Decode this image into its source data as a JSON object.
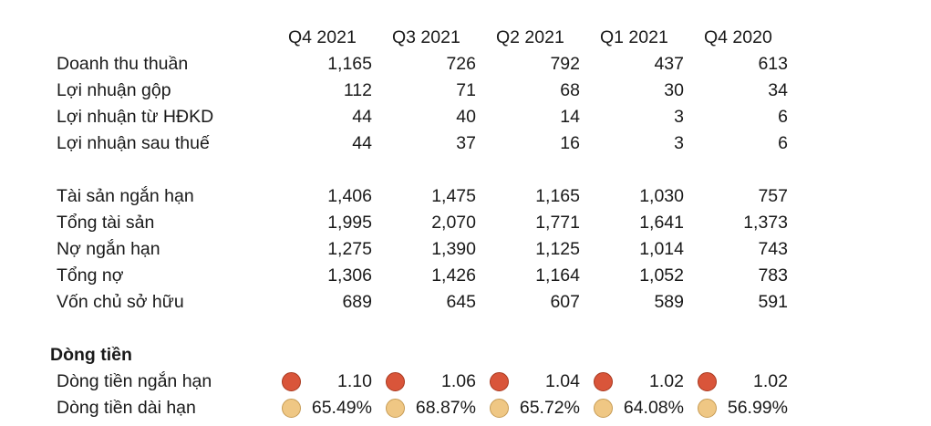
{
  "columns": [
    "Q4 2021",
    "Q3 2021",
    "Q2 2021",
    "Q1 2021",
    "Q4 2020"
  ],
  "income": [
    {
      "label": "Doanh thu thuần",
      "values": [
        "1,165",
        "726",
        "792",
        "437",
        "613"
      ]
    },
    {
      "label": "Lợi nhuận gộp",
      "values": [
        "112",
        "71",
        "68",
        "30",
        "34"
      ]
    },
    {
      "label": "Lợi nhuận từ HĐKD",
      "values": [
        "44",
        "40",
        "14",
        "3",
        "6"
      ]
    },
    {
      "label": "Lợi nhuận sau thuế",
      "values": [
        "44",
        "37",
        "16",
        "3",
        "6"
      ]
    }
  ],
  "balance": [
    {
      "label": "Tài sản ngắn hạn",
      "values": [
        "1,406",
        "1,475",
        "1,165",
        "1,030",
        "757"
      ]
    },
    {
      "label": "Tổng tài sản",
      "values": [
        "1,995",
        "2,070",
        "1,771",
        "1,641",
        "1,373"
      ]
    },
    {
      "label": "Nợ ngắn hạn",
      "values": [
        "1,275",
        "1,390",
        "1,125",
        "1,014",
        "743"
      ]
    },
    {
      "label": "Tổng nợ",
      "values": [
        "1,306",
        "1,426",
        "1,164",
        "1,052",
        "783"
      ]
    },
    {
      "label": "Vốn chủ sở hữu",
      "values": [
        "689",
        "645",
        "607",
        "589",
        "591"
      ]
    }
  ],
  "cashflow": {
    "title": "Dòng tiền",
    "rows": [
      {
        "label": "Dòng tiền ngắn hạn",
        "values": [
          "1.10",
          "1.06",
          "1.04",
          "1.02",
          "1.02"
        ],
        "indicator_color": "#d9553a",
        "indicator_icon": "red-circle-icon"
      },
      {
        "label": "Dòng tiền dài hạn",
        "values": [
          "65.49%",
          "68.87%",
          "65.72%",
          "64.08%",
          "56.99%"
        ],
        "indicator_color": "#efc784",
        "indicator_icon": "tan-circle-icon"
      }
    ]
  }
}
